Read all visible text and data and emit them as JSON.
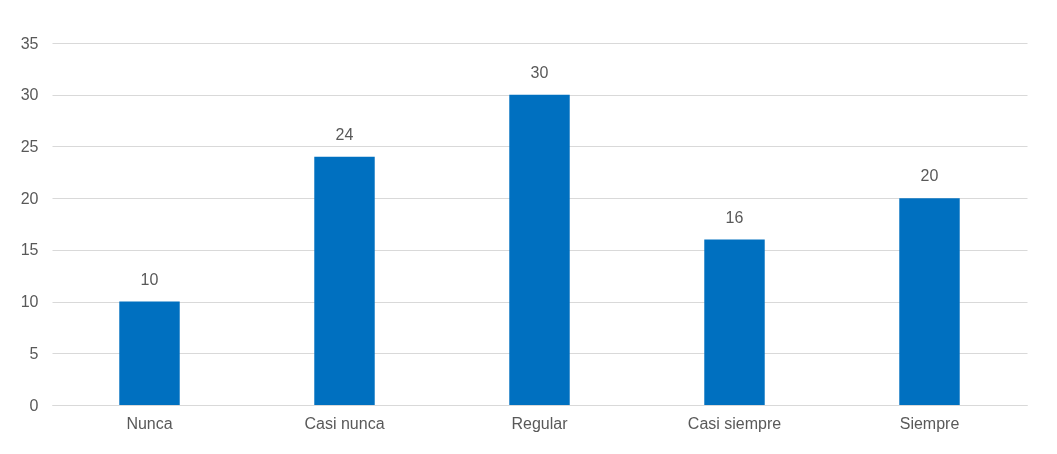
{
  "chart_data": {
    "type": "bar",
    "categories": [
      "Nunca",
      "Casi nunca",
      "Regular",
      "Casi siempre",
      "Siempre"
    ],
    "values": [
      10,
      24,
      30,
      16,
      20
    ],
    "color": "#0070c0",
    "ylim": [
      0,
      35
    ],
    "yticks": [
      0,
      5,
      10,
      15,
      20,
      25,
      30,
      35
    ],
    "grid": "y",
    "data_labels": true
  }
}
